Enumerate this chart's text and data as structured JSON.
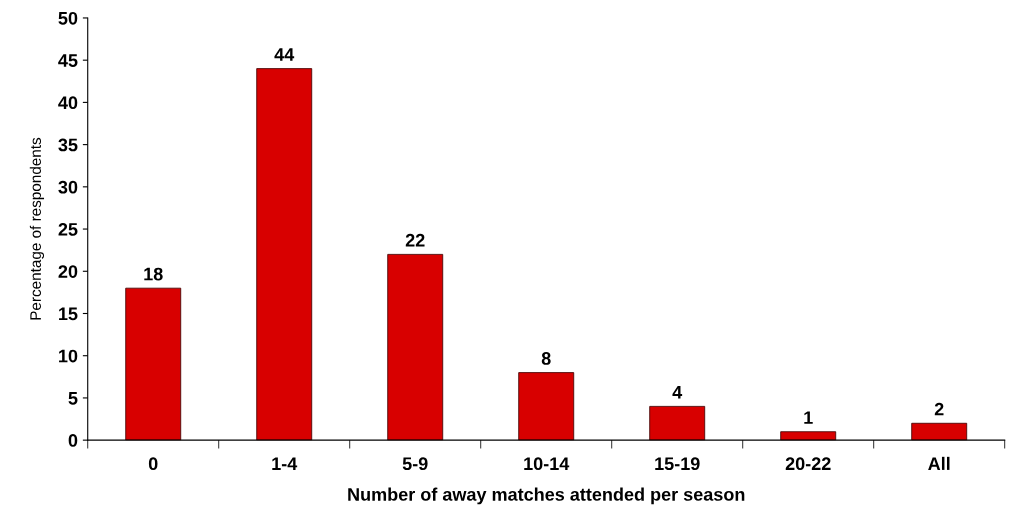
{
  "chart_data": {
    "type": "bar",
    "xlabel": "Number of away matches attended per season",
    "ylabel": "Percentage of respondents",
    "categories": [
      "0",
      "1-4",
      "5-9",
      "10-14",
      "15-19",
      "20-22",
      "All"
    ],
    "values": [
      18,
      44,
      22,
      8,
      4,
      1,
      2
    ],
    "color": "#d80000",
    "ylim": [
      0,
      50
    ],
    "yticks": [
      0,
      5,
      10,
      15,
      20,
      25,
      30,
      35,
      40,
      45,
      50
    ],
    "grid": false,
    "data_labels": true
  }
}
